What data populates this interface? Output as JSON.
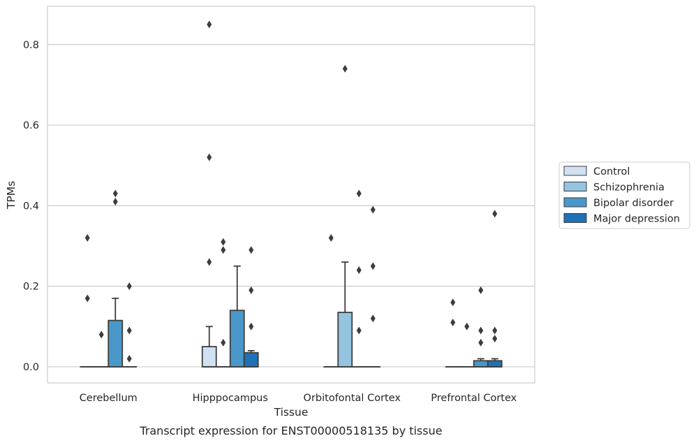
{
  "chart_data": {
    "type": "box",
    "xlabel": "Tissue",
    "ylabel": "TPMs",
    "caption": "Transcript expression for ENST00000518135 by tissue",
    "ylim": [
      -0.04,
      0.895
    ],
    "yticks": [
      0.0,
      0.2,
      0.4,
      0.6,
      0.8
    ],
    "ytick_labels": [
      "0.0",
      "0.2",
      "0.4",
      "0.6",
      "0.8"
    ],
    "grid": "horizontal",
    "legend_position": "right",
    "categories": [
      "Cerebellum",
      "Hipppocampus",
      "Orbitofontal Cortex",
      "Prefrontal Cortex"
    ],
    "series": [
      {
        "name": "Control",
        "color": "#d0e1f2",
        "boxes": [
          {
            "q1": 0,
            "median": 0,
            "q3": 0,
            "whisker_low": 0,
            "whisker_high": 0,
            "outliers": [
              0.32,
              0.17
            ]
          },
          {
            "q1": 0,
            "median": 0,
            "q3": 0.05,
            "whisker_low": 0,
            "whisker_high": 0.1,
            "outliers": [
              0.85,
              0.52,
              0.26
            ]
          },
          {
            "q1": 0,
            "median": 0,
            "q3": 0,
            "whisker_low": 0,
            "whisker_high": 0,
            "outliers": [
              0.32
            ]
          },
          {
            "q1": 0,
            "median": 0,
            "q3": 0,
            "whisker_low": 0,
            "whisker_high": 0,
            "outliers": [
              0.16,
              0.11
            ]
          }
        ]
      },
      {
        "name": "Schizophrenia",
        "color": "#94c4df",
        "boxes": [
          {
            "q1": 0,
            "median": 0,
            "q3": 0,
            "whisker_low": 0,
            "whisker_high": 0,
            "outliers": [
              0.08
            ]
          },
          {
            "q1": 0,
            "median": 0,
            "q3": 0,
            "whisker_low": 0,
            "whisker_high": 0,
            "outliers": [
              0.31,
              0.29,
              0.06
            ]
          },
          {
            "q1": 0,
            "median": 0,
            "q3": 0.135,
            "whisker_low": 0,
            "whisker_high": 0.26,
            "outliers": [
              0.74
            ]
          },
          {
            "q1": 0,
            "median": 0,
            "q3": 0,
            "whisker_low": 0,
            "whisker_high": 0,
            "outliers": [
              0.1
            ]
          }
        ]
      },
      {
        "name": "Bipolar disorder",
        "color": "#4a98c9",
        "boxes": [
          {
            "q1": 0,
            "median": 0,
            "q3": 0.115,
            "whisker_low": 0,
            "whisker_high": 0.17,
            "outliers": [
              0.43,
              0.41
            ]
          },
          {
            "q1": 0,
            "median": 0,
            "q3": 0.14,
            "whisker_low": 0,
            "whisker_high": 0.25,
            "outliers": []
          },
          {
            "q1": 0,
            "median": 0,
            "q3": 0,
            "whisker_low": 0,
            "whisker_high": 0,
            "outliers": [
              0.43,
              0.24,
              0.09
            ]
          },
          {
            "q1": 0,
            "median": 0,
            "q3": 0.015,
            "whisker_low": 0,
            "whisker_high": 0.02,
            "outliers": [
              0.19,
              0.09,
              0.06
            ]
          }
        ]
      },
      {
        "name": "Major depression",
        "color": "#2171b5",
        "boxes": [
          {
            "q1": 0,
            "median": 0,
            "q3": 0,
            "whisker_low": 0,
            "whisker_high": 0,
            "outliers": [
              0.2,
              0.09,
              0.02
            ]
          },
          {
            "q1": 0,
            "median": 0,
            "q3": 0.035,
            "whisker_low": 0,
            "whisker_high": 0.04,
            "outliers": [
              0.29,
              0.19,
              0.1
            ]
          },
          {
            "q1": 0,
            "median": 0,
            "q3": 0,
            "whisker_low": 0,
            "whisker_high": 0,
            "outliers": [
              0.39,
              0.25,
              0.12
            ]
          },
          {
            "q1": 0,
            "median": 0,
            "q3": 0.015,
            "whisker_low": 0,
            "whisker_high": 0.02,
            "outliers": [
              0.38,
              0.09,
              0.07
            ]
          }
        ]
      }
    ]
  }
}
